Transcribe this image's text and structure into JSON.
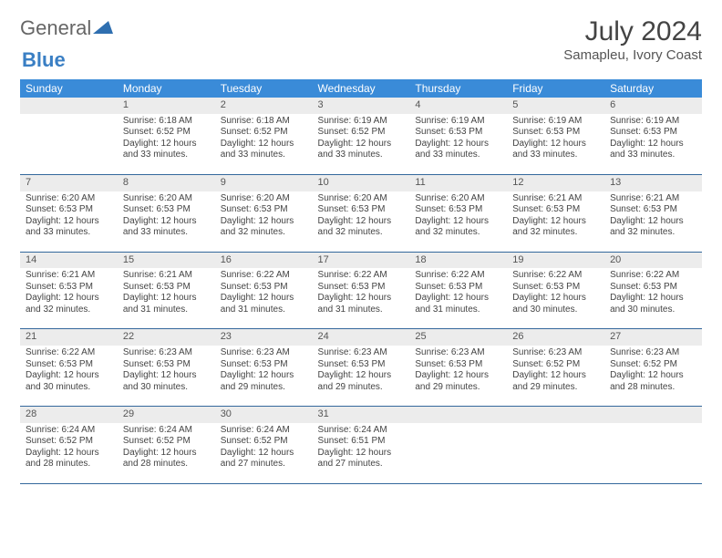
{
  "logo": {
    "text1": "General",
    "text2": "Blue"
  },
  "title": "July 2024",
  "location": "Samapleu, Ivory Coast",
  "colors": {
    "header_bg": "#3a8bd8",
    "header_text": "#ffffff",
    "daynum_bg": "#ececec",
    "border": "#34689c",
    "logo_general": "#666666",
    "logo_blue": "#3a7fc4"
  },
  "weekdays": [
    "Sunday",
    "Monday",
    "Tuesday",
    "Wednesday",
    "Thursday",
    "Friday",
    "Saturday"
  ],
  "first_day_index": 1,
  "days_in_month": 31,
  "days": {
    "1": {
      "sunrise": "6:18 AM",
      "sunset": "6:52 PM",
      "daylight": "12 hours and 33 minutes."
    },
    "2": {
      "sunrise": "6:18 AM",
      "sunset": "6:52 PM",
      "daylight": "12 hours and 33 minutes."
    },
    "3": {
      "sunrise": "6:19 AM",
      "sunset": "6:52 PM",
      "daylight": "12 hours and 33 minutes."
    },
    "4": {
      "sunrise": "6:19 AM",
      "sunset": "6:53 PM",
      "daylight": "12 hours and 33 minutes."
    },
    "5": {
      "sunrise": "6:19 AM",
      "sunset": "6:53 PM",
      "daylight": "12 hours and 33 minutes."
    },
    "6": {
      "sunrise": "6:19 AM",
      "sunset": "6:53 PM",
      "daylight": "12 hours and 33 minutes."
    },
    "7": {
      "sunrise": "6:20 AM",
      "sunset": "6:53 PM",
      "daylight": "12 hours and 33 minutes."
    },
    "8": {
      "sunrise": "6:20 AM",
      "sunset": "6:53 PM",
      "daylight": "12 hours and 33 minutes."
    },
    "9": {
      "sunrise": "6:20 AM",
      "sunset": "6:53 PM",
      "daylight": "12 hours and 32 minutes."
    },
    "10": {
      "sunrise": "6:20 AM",
      "sunset": "6:53 PM",
      "daylight": "12 hours and 32 minutes."
    },
    "11": {
      "sunrise": "6:20 AM",
      "sunset": "6:53 PM",
      "daylight": "12 hours and 32 minutes."
    },
    "12": {
      "sunrise": "6:21 AM",
      "sunset": "6:53 PM",
      "daylight": "12 hours and 32 minutes."
    },
    "13": {
      "sunrise": "6:21 AM",
      "sunset": "6:53 PM",
      "daylight": "12 hours and 32 minutes."
    },
    "14": {
      "sunrise": "6:21 AM",
      "sunset": "6:53 PM",
      "daylight": "12 hours and 32 minutes."
    },
    "15": {
      "sunrise": "6:21 AM",
      "sunset": "6:53 PM",
      "daylight": "12 hours and 31 minutes."
    },
    "16": {
      "sunrise": "6:22 AM",
      "sunset": "6:53 PM",
      "daylight": "12 hours and 31 minutes."
    },
    "17": {
      "sunrise": "6:22 AM",
      "sunset": "6:53 PM",
      "daylight": "12 hours and 31 minutes."
    },
    "18": {
      "sunrise": "6:22 AM",
      "sunset": "6:53 PM",
      "daylight": "12 hours and 31 minutes."
    },
    "19": {
      "sunrise": "6:22 AM",
      "sunset": "6:53 PM",
      "daylight": "12 hours and 30 minutes."
    },
    "20": {
      "sunrise": "6:22 AM",
      "sunset": "6:53 PM",
      "daylight": "12 hours and 30 minutes."
    },
    "21": {
      "sunrise": "6:22 AM",
      "sunset": "6:53 PM",
      "daylight": "12 hours and 30 minutes."
    },
    "22": {
      "sunrise": "6:23 AM",
      "sunset": "6:53 PM",
      "daylight": "12 hours and 30 minutes."
    },
    "23": {
      "sunrise": "6:23 AM",
      "sunset": "6:53 PM",
      "daylight": "12 hours and 29 minutes."
    },
    "24": {
      "sunrise": "6:23 AM",
      "sunset": "6:53 PM",
      "daylight": "12 hours and 29 minutes."
    },
    "25": {
      "sunrise": "6:23 AM",
      "sunset": "6:53 PM",
      "daylight": "12 hours and 29 minutes."
    },
    "26": {
      "sunrise": "6:23 AM",
      "sunset": "6:52 PM",
      "daylight": "12 hours and 29 minutes."
    },
    "27": {
      "sunrise": "6:23 AM",
      "sunset": "6:52 PM",
      "daylight": "12 hours and 28 minutes."
    },
    "28": {
      "sunrise": "6:24 AM",
      "sunset": "6:52 PM",
      "daylight": "12 hours and 28 minutes."
    },
    "29": {
      "sunrise": "6:24 AM",
      "sunset": "6:52 PM",
      "daylight": "12 hours and 28 minutes."
    },
    "30": {
      "sunrise": "6:24 AM",
      "sunset": "6:52 PM",
      "daylight": "12 hours and 27 minutes."
    },
    "31": {
      "sunrise": "6:24 AM",
      "sunset": "6:51 PM",
      "daylight": "12 hours and 27 minutes."
    }
  },
  "labels": {
    "sunrise": "Sunrise:",
    "sunset": "Sunset:",
    "daylight": "Daylight:"
  }
}
